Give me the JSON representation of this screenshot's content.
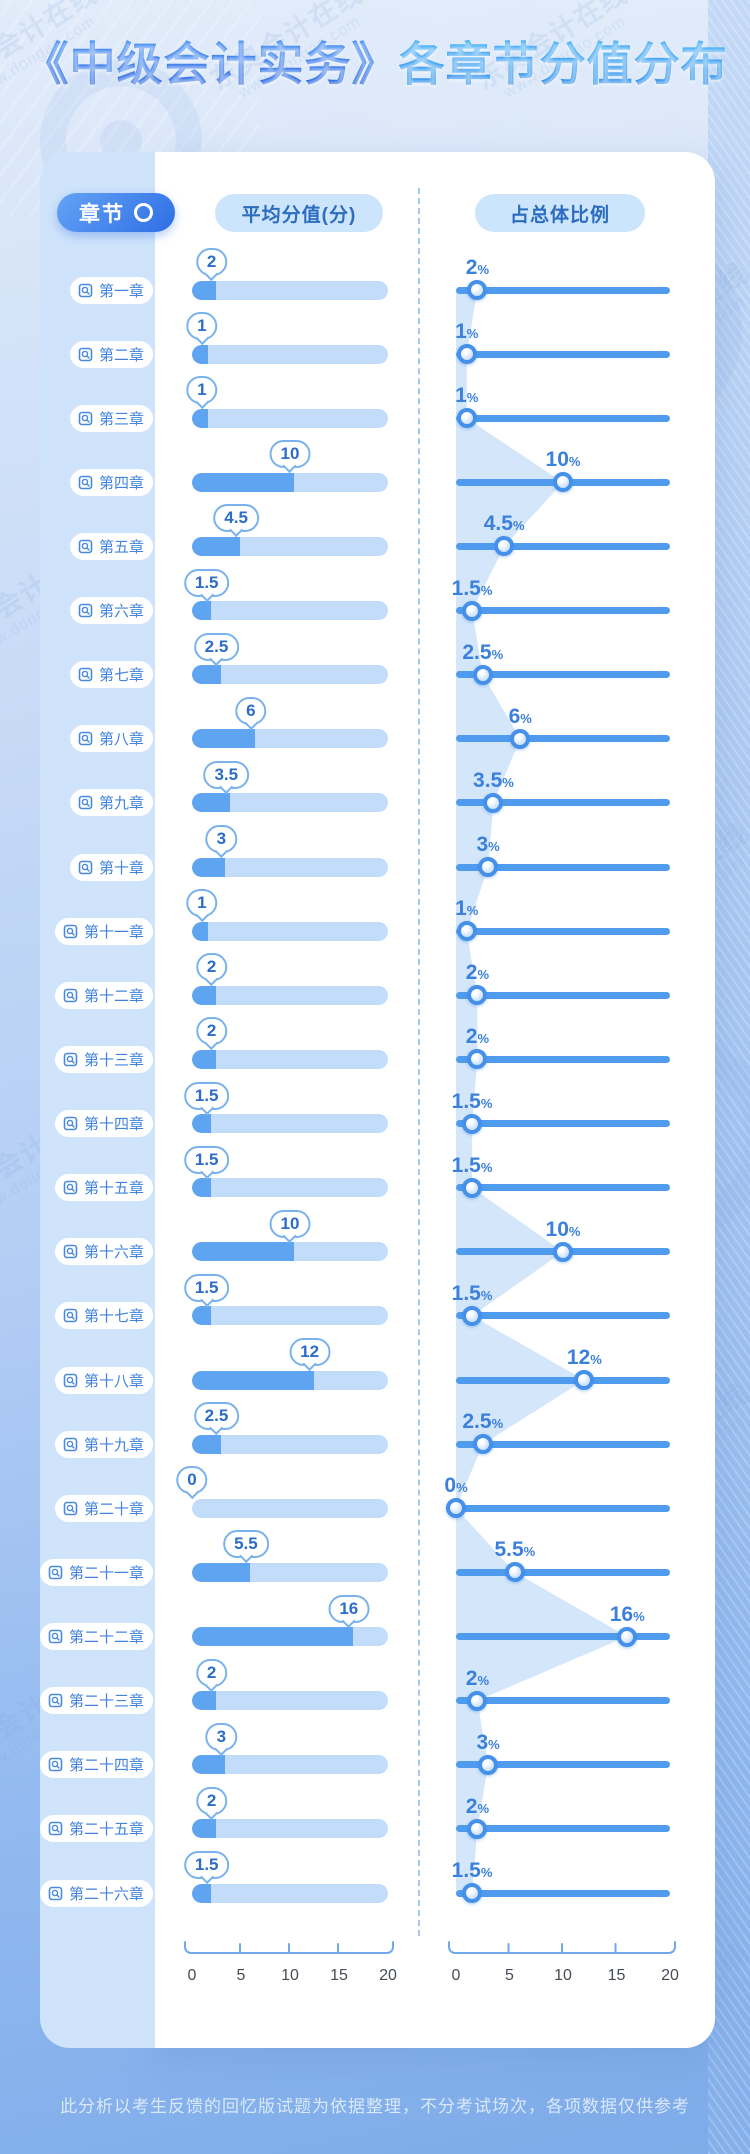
{
  "title": {
    "book": "《中级会计实务》",
    "rest": "各章节分值分布"
  },
  "header": {
    "chapter_label": "章节",
    "avg_label": "平均分值(分)",
    "pct_label": "占总体比例"
  },
  "chart_data": {
    "type": "bar",
    "orientation": "horizontal",
    "categories": [
      "第一章",
      "第二章",
      "第三章",
      "第四章",
      "第五章",
      "第六章",
      "第七章",
      "第八章",
      "第九章",
      "第十章",
      "第十一章",
      "第十二章",
      "第十三章",
      "第十四章",
      "第十五章",
      "第十六章",
      "第十七章",
      "第十八章",
      "第十九章",
      "第二十章",
      "第二十一章",
      "第二十二章",
      "第二十三章",
      "第二十四章",
      "第二十五章",
      "第二十六章"
    ],
    "series": [
      {
        "name": "平均分值(分)",
        "values": [
          2,
          1,
          1,
          10,
          4.5,
          1.5,
          2.5,
          6,
          3.5,
          3,
          1,
          2,
          2,
          1.5,
          1.5,
          10,
          1.5,
          12,
          2.5,
          0,
          5.5,
          16,
          2,
          3,
          2,
          1.5
        ]
      },
      {
        "name": "占总体比例",
        "unit": "%",
        "values": [
          2,
          1,
          1,
          10,
          4.5,
          1.5,
          2.5,
          6,
          3.5,
          3,
          1,
          2,
          2,
          1.5,
          1.5,
          10,
          1.5,
          12,
          2.5,
          0,
          5.5,
          16,
          2,
          3,
          2,
          1.5
        ]
      }
    ],
    "xlim": [
      0,
      20
    ],
    "tick_labels": [
      "0",
      "5",
      "10",
      "15",
      "20"
    ],
    "grid": false,
    "legend_position": "none"
  },
  "footer": {
    "note": "此分析以考生反馈的回忆版试题为依据整理，不分考试场次，各项数据仅供参考"
  },
  "watermark": {
    "text": "东奥会计在线",
    "url": "www.dongao.com"
  },
  "colors": {
    "title_book": "#1f66ea",
    "title_rest": "#2796f2",
    "bar_fill": "#5ea4f0",
    "bar_track": "#c3dcf9",
    "slider_line": "#4f9bee",
    "accent_text": "#3b80da",
    "sidebar_bg": "#cfe3fb",
    "header_pill_bg": "#cde5fc",
    "chapter_pill_text": "#4284da",
    "area_fill": "rgba(170,206,245,0.5)"
  }
}
